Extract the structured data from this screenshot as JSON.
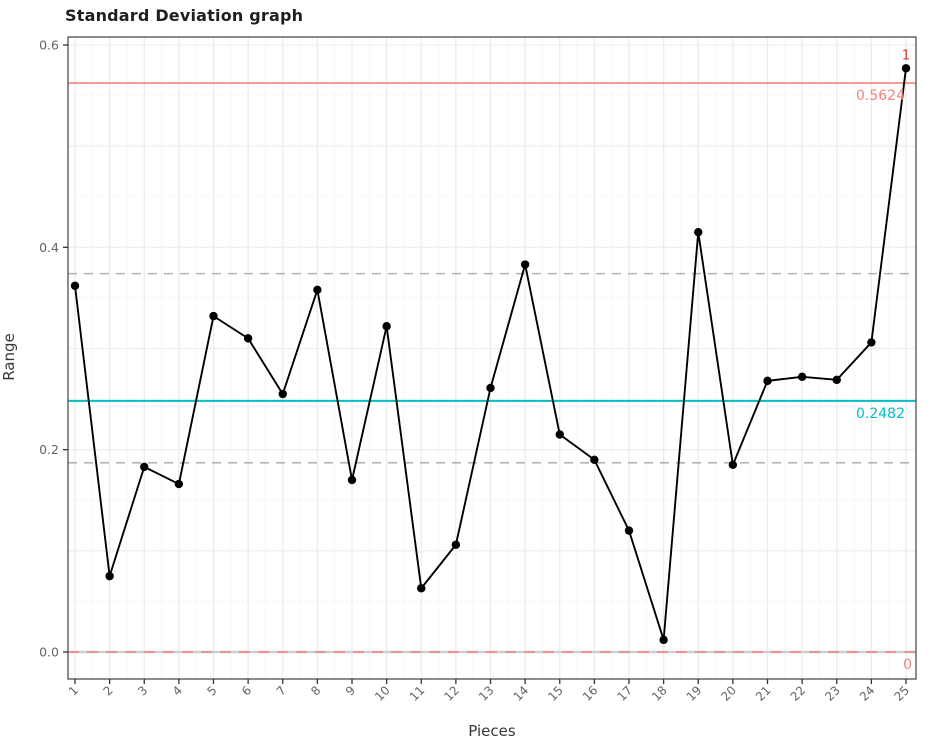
{
  "chart_data": {
    "type": "line",
    "title": "Standard Deviation graph",
    "xlabel": "Pieces",
    "ylabel": "Range",
    "x": [
      1,
      2,
      3,
      4,
      5,
      6,
      7,
      8,
      9,
      10,
      11,
      12,
      13,
      14,
      15,
      16,
      17,
      18,
      19,
      20,
      21,
      22,
      23,
      24,
      25
    ],
    "values": [
      0.362,
      0.075,
      0.183,
      0.166,
      0.332,
      0.31,
      0.255,
      0.358,
      0.17,
      0.322,
      0.063,
      0.106,
      0.261,
      0.383,
      0.215,
      0.19,
      0.12,
      0.012,
      0.415,
      0.185,
      0.268,
      0.272,
      0.269,
      0.306,
      0.577
    ],
    "series_color": "#000000",
    "yticks": [
      0.0,
      0.2,
      0.4,
      0.6
    ],
    "ytick_labels": [
      "0.0",
      "0.2",
      "0.4",
      "0.6"
    ],
    "ylim": [
      -0.027,
      0.608
    ],
    "xlim": [
      0.8,
      25.3
    ],
    "grid": true,
    "legend_position": "none",
    "reference_lines": [
      {
        "name": "upper-control-limit",
        "value": 0.5624,
        "label": "0.5624",
        "color": "#F4837B",
        "style": "solid"
      },
      {
        "name": "center-line",
        "value": 0.2482,
        "label": "0.2482",
        "color": "#00BEC4",
        "style": "solid"
      },
      {
        "name": "lower-control-limit",
        "value": 0.0,
        "label": "0",
        "color": "#F4837B",
        "style": "dashed"
      },
      {
        "name": "zone-line-upper",
        "value": 0.374,
        "label": "",
        "color": "#B3B3B3",
        "style": "dashed"
      },
      {
        "name": "zone-line-lower",
        "value": 0.187,
        "label": "",
        "color": "#B3B3B3",
        "style": "dashed"
      }
    ],
    "annotations": [
      {
        "text": "1",
        "x": 25,
        "value": 0.577,
        "color": "#DE352C"
      }
    ]
  }
}
